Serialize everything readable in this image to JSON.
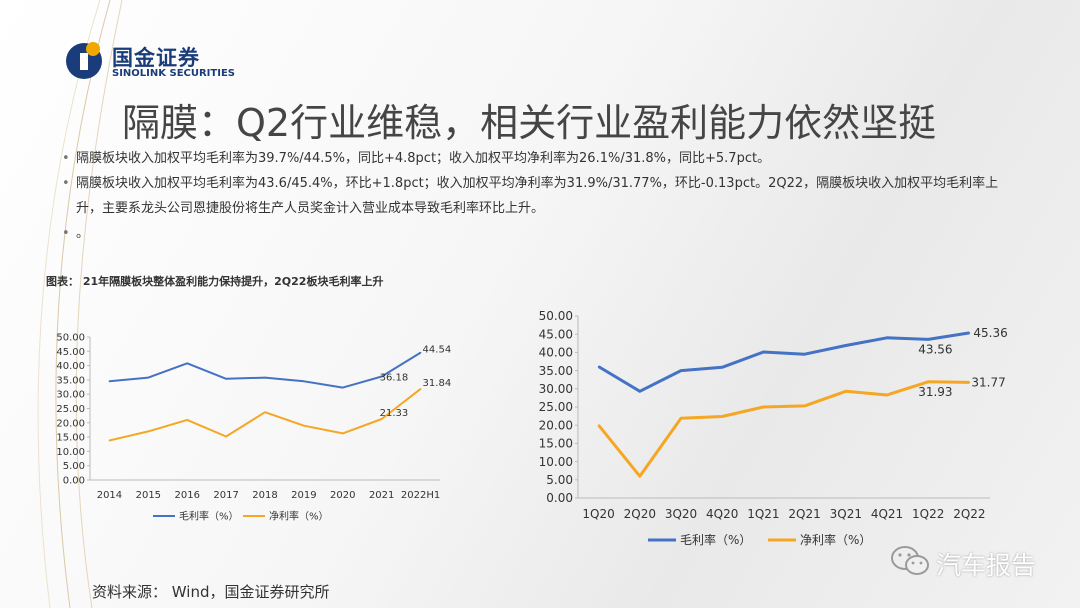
{
  "logo": {
    "cn": "国金证券",
    "en": "SINOLINK SECURITIES"
  },
  "title": "隔膜：Q2行业维稳，相关行业盈利能力依然坚挺",
  "bullets": [
    "隔膜板块收入加权平均毛利率为39.7%/44.5%，同比+4.8pct；收入加权平均净利率为26.1%/31.8%，同比+5.7pct。",
    "隔膜板块收入加权平均毛利率为43.6/45.4%，环比+1.8pct；收入加权平均净利率为31.9%/31.77%，环比-0.13pct。2Q22，隔膜板块收入加权平均毛利率上升，主要系龙头公司恩捷股份将生产人员奖金计入营业成本导致毛利率环比上升。",
    "。"
  ],
  "caption": "图表： 21年隔膜板块整体盈利能力保持提升，2Q22板块毛利率上升",
  "source": "资料来源： Wind，国金证券研究所",
  "watermark": "汽车报告",
  "colors": {
    "gross": "#4472c4",
    "net": "#f5a623",
    "brand": "#1b3c7a",
    "logo_accent": "#f0a800"
  },
  "chart_data": [
    {
      "type": "line",
      "categories": [
        "2014",
        "2015",
        "2016",
        "2017",
        "2018",
        "2019",
        "2020",
        "2021",
        "2022H1"
      ],
      "series": [
        {
          "name": "毛利率（%）",
          "values": [
            34.5,
            35.8,
            40.8,
            35.4,
            35.8,
            34.5,
            32.3,
            36.18,
            44.54
          ],
          "labels": [
            null,
            null,
            null,
            null,
            null,
            null,
            null,
            "36.18",
            "44.54"
          ]
        },
        {
          "name": "净利率（%）",
          "values": [
            13.8,
            17.0,
            21.0,
            15.2,
            23.7,
            19.0,
            16.3,
            21.33,
            31.84
          ],
          "labels": [
            null,
            null,
            null,
            null,
            null,
            null,
            null,
            "21.33",
            "31.84"
          ]
        }
      ],
      "yticks": [
        "0.00",
        "5.00",
        "10.00",
        "15.00",
        "20.00",
        "25.00",
        "30.00",
        "35.00",
        "40.00",
        "45.00",
        "50.00"
      ],
      "ylim": [
        0,
        50
      ],
      "legend": "bottom"
    },
    {
      "type": "line",
      "categories": [
        "1Q20",
        "2Q20",
        "3Q20",
        "4Q20",
        "1Q21",
        "2Q21",
        "3Q21",
        "4Q21",
        "1Q22",
        "2Q22"
      ],
      "series": [
        {
          "name": "毛利率（%）",
          "values": [
            36.1,
            29.3,
            35.0,
            35.9,
            40.1,
            39.5,
            41.9,
            44.0,
            43.56,
            45.36
          ],
          "labels": [
            null,
            null,
            null,
            null,
            null,
            null,
            null,
            null,
            "43.56",
            "45.36"
          ]
        },
        {
          "name": "净利率（%）",
          "values": [
            20.0,
            6.0,
            21.9,
            22.4,
            25.0,
            25.3,
            29.3,
            28.3,
            31.93,
            31.77
          ],
          "labels": [
            null,
            null,
            null,
            null,
            null,
            null,
            null,
            null,
            "31.93",
            "31.77"
          ]
        }
      ],
      "yticks": [
        "0.00",
        "5.00",
        "10.00",
        "15.00",
        "20.00",
        "25.00",
        "30.00",
        "35.00",
        "40.00",
        "45.00",
        "50.00"
      ],
      "ylim": [
        0,
        50
      ],
      "legend": "bottom"
    }
  ]
}
